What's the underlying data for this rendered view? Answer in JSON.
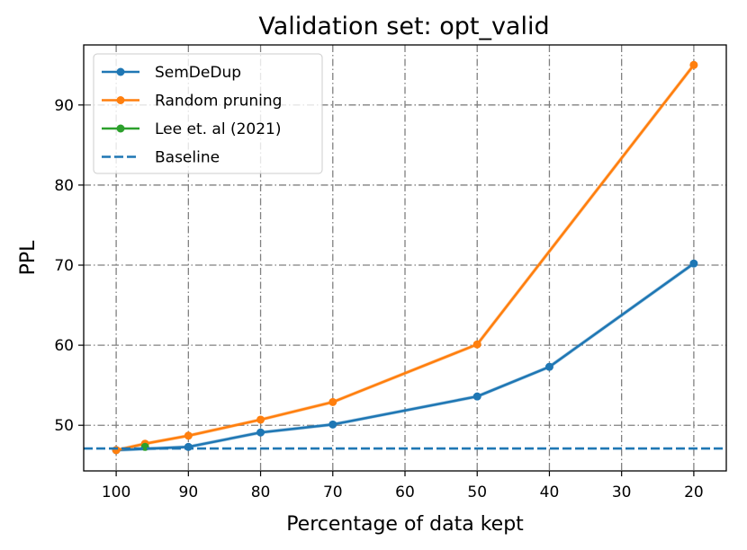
{
  "chart_data": {
    "type": "line",
    "title": "Validation set: opt_valid",
    "xlabel": "Percentage of data kept",
    "ylabel": "PPL",
    "xlim": [
      104.5,
      15.5
    ],
    "ylim": [
      44.3,
      97.5
    ],
    "x_ticks": [
      100,
      90,
      80,
      70,
      60,
      50,
      40,
      30,
      20
    ],
    "y_ticks": [
      50,
      60,
      70,
      80,
      90
    ],
    "grid": true,
    "legend_position": "top-left",
    "series": [
      {
        "name": "SemDeDup",
        "color": "#1f77b4",
        "x": [
          100,
          90,
          80,
          70,
          50,
          40,
          20
        ],
        "y": [
          46.9,
          47.3,
          49.1,
          50.1,
          53.6,
          57.3,
          70.2
        ],
        "marker": true
      },
      {
        "name": "Random pruning",
        "color": "#ff7f0e",
        "x": [
          100,
          96,
          90,
          80,
          70,
          50,
          20
        ],
        "y": [
          46.9,
          47.7,
          48.7,
          50.7,
          52.9,
          60.1,
          95.0
        ],
        "marker": true
      },
      {
        "name": "Lee et. al (2021)",
        "color": "#2ca02c",
        "x": [
          96
        ],
        "y": [
          47.3
        ],
        "marker": true
      },
      {
        "name": "Baseline",
        "color": "#1f77b4",
        "y_const": 47.1,
        "dashed": true
      }
    ]
  }
}
